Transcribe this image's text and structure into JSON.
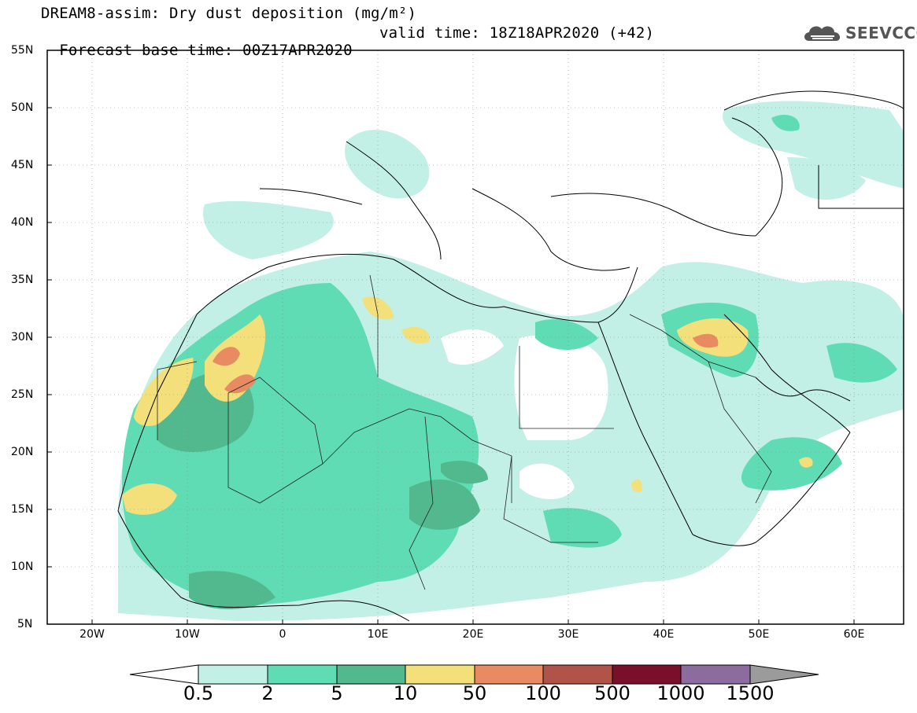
{
  "title": {
    "line1": "DREAM8-assim: Dry dust deposition (mg/m²)",
    "base_time": "Forecast base time: 00Z17APR2020",
    "valid_time": "valid time: 18Z18APR2020 (+42)"
  },
  "logo": {
    "text": "SEEVCCC",
    "icon": "cloud-logo-icon"
  },
  "axes": {
    "lat_labels": [
      "55N",
      "50N",
      "45N",
      "40N",
      "35N",
      "30N",
      "25N",
      "20N",
      "15N",
      "10N",
      "5N"
    ],
    "lon_labels": [
      "20W",
      "10W",
      "0",
      "10E",
      "20E",
      "30E",
      "40E",
      "50E",
      "60E"
    ]
  },
  "colorbar": {
    "labels": [
      "0.5",
      "2",
      "5",
      "10",
      "50",
      "100",
      "500",
      "1000",
      "1500"
    ],
    "colors": [
      "#c2efe6",
      "#5fdcb3",
      "#52b98f",
      "#f4e07a",
      "#e98b62",
      "#b2534a",
      "#7a0f2a",
      "#8c6b9e",
      "#9b9b9b"
    ]
  }
}
